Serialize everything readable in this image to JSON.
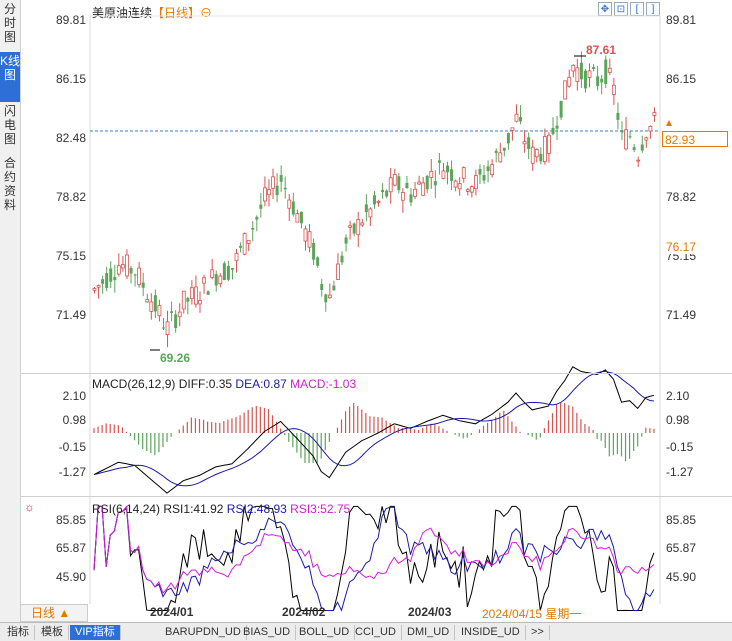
{
  "sidebar": {
    "tabs": [
      {
        "label": "分时图",
        "active": false
      },
      {
        "label": "K线图",
        "active": true
      },
      {
        "label": "闪电图",
        "active": false
      },
      {
        "label": "合约资料",
        "active": false
      }
    ]
  },
  "header": {
    "title": "美原油连续",
    "period": "【日线】",
    "circle_icon": "⊖"
  },
  "toolbar": {
    "icons": [
      "move-icon",
      "zoom-fit-icon",
      "left-bracket-icon",
      "right-bracket-icon"
    ]
  },
  "main_chart": {
    "y_ticks": [
      "89.81",
      "86.15",
      "82.48",
      "78.82",
      "75.15",
      "71.49"
    ],
    "high_label": "87.61",
    "low_label": "69.26",
    "last_price": "82.93",
    "cursor_price": "76.17",
    "colors": {
      "up": "#d9534f",
      "down": "#5aa55a",
      "dash": "#3a7bd5"
    }
  },
  "macd": {
    "name": "MACD(26,12,9)",
    "diff": "DIFF:0.35",
    "dea": "DEA:0.87",
    "macd": "MACD:-1.03",
    "y_ticks": [
      "2.10",
      "0.98",
      "-0.15",
      "-1.27"
    ]
  },
  "rsi": {
    "name": "RSI(6,14,24)",
    "rsi1": "RSI1:41.92",
    "rsi2": "RSI2:48.93",
    "rsi3": "RSI3:52.75",
    "y_ticks": [
      "85.85",
      "65.87",
      "45.90"
    ]
  },
  "date_axis": {
    "period_tab": "日线 ▲",
    "dates": [
      "2024/01",
      "2024/02",
      "2024/03"
    ],
    "current": "2024/04/15 星期一"
  },
  "bottom_tabs": [
    "指标",
    "模板",
    "VIP指标",
    "BARUPDN_UD",
    "BIAS_UD",
    "BOLL_UD",
    "CCI_UD",
    "DMI_UD",
    "INSIDE_UD",
    ">>"
  ],
  "active_bottom_tab": "VIP指标"
}
